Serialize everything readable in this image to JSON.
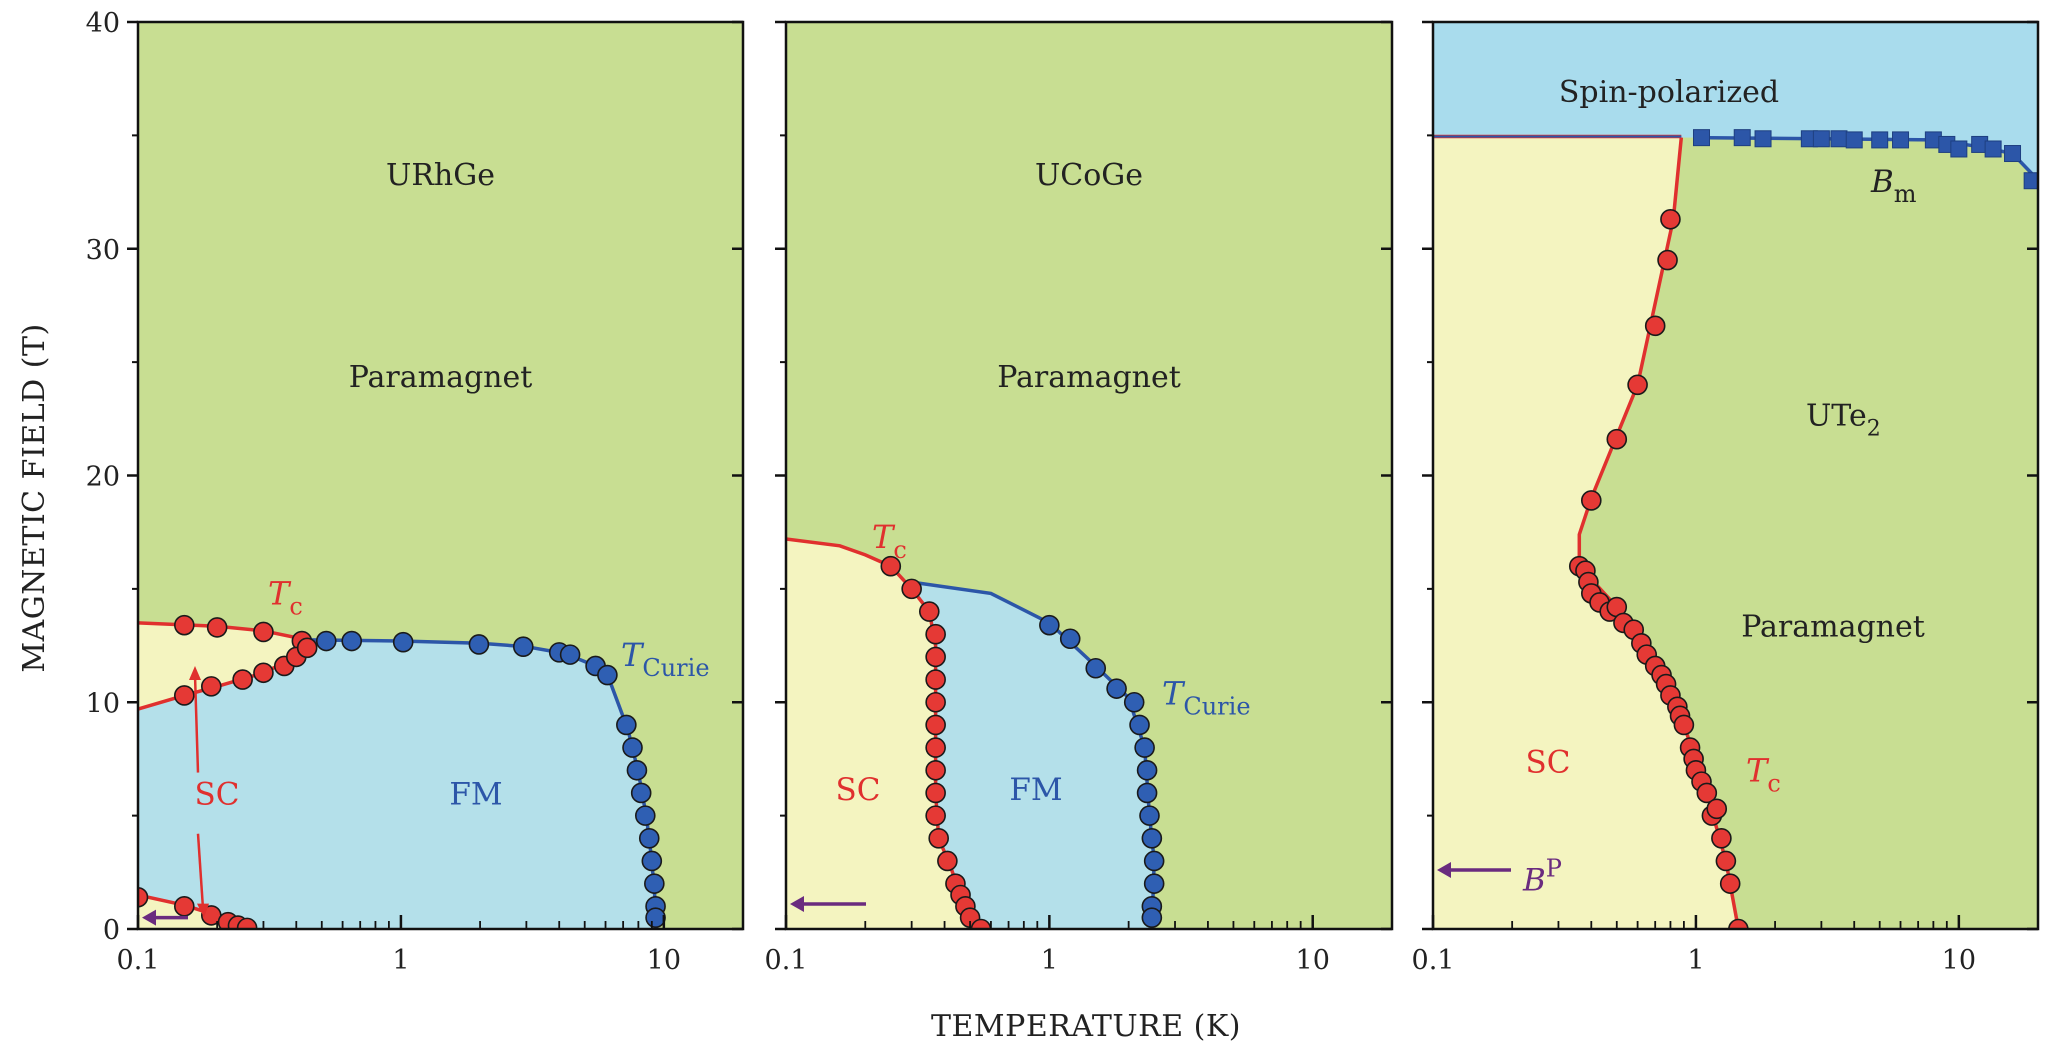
{
  "figure": {
    "ylabel": "MAGNETIC FIELD (T)",
    "xlabel": "TEMPERATURE (K)",
    "y_ticks": [
      "0",
      "10",
      "20",
      "30",
      "40"
    ],
    "x_ticks": [
      "0.1",
      "1",
      "10"
    ],
    "colors": {
      "paramagnet": "#c8de92",
      "ferromagnet": "#b4e0ea",
      "superconductor": "#f4f4c0",
      "spin_polarized": "#a9dced",
      "tc_curve": "#e0302e",
      "curie_curve": "#2c56a8",
      "arrow": "#6a2b7f"
    }
  },
  "panels": [
    {
      "material": "URhGe",
      "labels": {
        "paramagnet": "Paramagnet",
        "sc": "SC",
        "fm": "FM",
        "tc": "T",
        "tc_sub": "c",
        "curie": "T",
        "curie_sub": "Curie"
      }
    },
    {
      "material": "UCoGe",
      "labels": {
        "paramagnet": "Paramagnet",
        "sc": "SC",
        "fm": "FM",
        "tc": "T",
        "tc_sub": "c",
        "curie": "T",
        "curie_sub": "Curie"
      }
    },
    {
      "material": "UTe",
      "material_sub": "2",
      "labels": {
        "paramagnet": "Paramagnet",
        "sc": "SC",
        "spin": "Spin-polarized",
        "tc": "T",
        "tc_sub": "c",
        "bm": "B",
        "bm_sub": "m",
        "bp": "B",
        "bp_sup": "P"
      }
    }
  ],
  "chart_data": [
    {
      "type": "scatter",
      "title": "URhGe",
      "xlabel": "TEMPERATURE (K)",
      "ylabel": "MAGNETIC FIELD (T)",
      "x_scale": "log",
      "xlim": [
        0.1,
        20
      ],
      "ylim": [
        0,
        40
      ],
      "regions": [
        "Paramagnet",
        "SC",
        "FM"
      ],
      "series": [
        {
          "name": "T_c",
          "color": "#e0302e",
          "points": [
            [
              0.15,
              13.4
            ],
            [
              0.2,
              13.3
            ],
            [
              0.3,
              13.1
            ],
            [
              0.42,
              12.7
            ],
            [
              0.1,
              1.4
            ],
            [
              0.15,
              1.0
            ],
            [
              0.19,
              0.6
            ],
            [
              0.22,
              0.3
            ],
            [
              0.24,
              0.15
            ],
            [
              0.26,
              0.05
            ],
            [
              0.15,
              10.3
            ],
            [
              0.19,
              10.7
            ],
            [
              0.25,
              11.0
            ],
            [
              0.3,
              11.3
            ],
            [
              0.36,
              11.6
            ],
            [
              0.4,
              12.0
            ],
            [
              0.44,
              12.4
            ]
          ]
        },
        {
          "name": "T_Curie",
          "color": "#2c56a8",
          "points": [
            [
              0.52,
              12.7
            ],
            [
              0.65,
              12.7
            ],
            [
              1.02,
              12.65
            ],
            [
              1.98,
              12.55
            ],
            [
              2.92,
              12.45
            ],
            [
              4.0,
              12.2
            ],
            [
              4.4,
              12.1
            ],
            [
              5.5,
              11.6
            ],
            [
              6.1,
              11.2
            ],
            [
              7.2,
              9.0
            ],
            [
              7.6,
              8.0
            ],
            [
              7.9,
              7.0
            ],
            [
              8.2,
              6.0
            ],
            [
              8.5,
              5.0
            ],
            [
              8.8,
              4.0
            ],
            [
              9.0,
              3.0
            ],
            [
              9.2,
              2.0
            ],
            [
              9.3,
              1.0
            ],
            [
              9.3,
              0.5
            ]
          ]
        }
      ],
      "curves": {
        "tc_upper": [
          [
            0.1,
            13.5
          ],
          [
            0.2,
            13.35
          ],
          [
            0.3,
            13.15
          ],
          [
            0.42,
            12.8
          ]
        ],
        "tc_reentrant": [
          [
            0.1,
            9.7
          ],
          [
            0.15,
            10.3
          ],
          [
            0.2,
            10.7
          ],
          [
            0.3,
            11.3
          ],
          [
            0.4,
            12.0
          ],
          [
            0.46,
            12.6
          ],
          [
            0.52,
            12.75
          ]
        ],
        "tc_low": [
          [
            0.1,
            1.5
          ],
          [
            0.15,
            1.05
          ],
          [
            0.2,
            0.6
          ],
          [
            0.25,
            0.2
          ],
          [
            0.27,
            0.0
          ]
        ],
        "curie": [
          [
            0.45,
            12.75
          ],
          [
            1.0,
            12.7
          ],
          [
            2.0,
            12.6
          ],
          [
            3.0,
            12.45
          ],
          [
            4.2,
            12.15
          ],
          [
            5.5,
            11.6
          ],
          [
            6.2,
            11.0
          ],
          [
            7.3,
            8.8
          ],
          [
            8.0,
            6.9
          ],
          [
            8.6,
            4.9
          ],
          [
            9.0,
            3.0
          ],
          [
            9.3,
            1.0
          ],
          [
            9.35,
            0.0
          ]
        ]
      },
      "bp_arrow_y": 0.5
    },
    {
      "type": "scatter",
      "title": "UCoGe",
      "xlabel": "TEMPERATURE (K)",
      "ylabel": "MAGNETIC FIELD (T)",
      "x_scale": "log",
      "xlim": [
        0.1,
        20
      ],
      "ylim": [
        0,
        40
      ],
      "regions": [
        "Paramagnet",
        "SC",
        "FM"
      ],
      "series": [
        {
          "name": "T_c",
          "color": "#e0302e",
          "points": [
            [
              0.25,
              16.0
            ],
            [
              0.3,
              15.0
            ],
            [
              0.35,
              14.0
            ],
            [
              0.37,
              13.0
            ],
            [
              0.37,
              12.0
            ],
            [
              0.37,
              11.0
            ],
            [
              0.37,
              10.0
            ],
            [
              0.37,
              9.0
            ],
            [
              0.37,
              8.0
            ],
            [
              0.37,
              7.0
            ],
            [
              0.37,
              6.0
            ],
            [
              0.37,
              5.0
            ],
            [
              0.38,
              4.0
            ],
            [
              0.41,
              3.0
            ],
            [
              0.44,
              2.0
            ],
            [
              0.46,
              1.5
            ],
            [
              0.48,
              1.0
            ],
            [
              0.5,
              0.5
            ],
            [
              0.55,
              0.0
            ]
          ]
        },
        {
          "name": "T_Curie",
          "color": "#2c56a8",
          "points": [
            [
              1.0,
              13.4
            ],
            [
              1.2,
              12.8
            ],
            [
              1.5,
              11.5
            ],
            [
              1.8,
              10.6
            ],
            [
              2.1,
              10.0
            ],
            [
              2.2,
              9.0
            ],
            [
              2.3,
              8.0
            ],
            [
              2.35,
              7.0
            ],
            [
              2.35,
              6.0
            ],
            [
              2.4,
              5.0
            ],
            [
              2.45,
              4.0
            ],
            [
              2.5,
              3.0
            ],
            [
              2.5,
              2.0
            ],
            [
              2.45,
              1.0
            ],
            [
              2.45,
              0.5
            ]
          ]
        }
      ],
      "curves": {
        "tc_outer": [
          [
            0.1,
            17.2
          ],
          [
            0.16,
            16.9
          ],
          [
            0.2,
            16.5
          ],
          [
            0.25,
            16.0
          ],
          [
            0.3,
            15.0
          ],
          [
            0.35,
            14.0
          ],
          [
            0.37,
            12.5
          ],
          [
            0.37,
            6.0
          ],
          [
            0.38,
            4.0
          ],
          [
            0.42,
            2.8
          ],
          [
            0.47,
            1.2
          ],
          [
            0.52,
            0.4
          ],
          [
            0.57,
            0.0
          ]
        ],
        "curie": [
          [
            0.3,
            15.3
          ],
          [
            0.6,
            14.8
          ],
          [
            1.0,
            13.5
          ],
          [
            1.5,
            11.6
          ],
          [
            2.0,
            10.2
          ],
          [
            2.3,
            8.0
          ],
          [
            2.4,
            5.0
          ],
          [
            2.5,
            3.0
          ],
          [
            2.45,
            0.0
          ]
        ]
      },
      "bp_arrow_y": 1.1
    },
    {
      "type": "scatter",
      "title": "UTe2",
      "xlabel": "TEMPERATURE (K)",
      "ylabel": "MAGNETIC FIELD (T)",
      "x_scale": "log",
      "xlim": [
        0.1,
        20
      ],
      "ylim": [
        0,
        40
      ],
      "regions": [
        "Spin-polarized",
        "Paramagnet",
        "SC"
      ],
      "series": [
        {
          "name": "T_c",
          "color": "#e0302e",
          "points": [
            [
              0.8,
              31.3
            ],
            [
              0.78,
              29.5
            ],
            [
              0.7,
              26.6
            ],
            [
              0.6,
              24.0
            ],
            [
              0.5,
              21.6
            ],
            [
              0.4,
              18.9
            ],
            [
              0.36,
              16.0
            ],
            [
              0.38,
              15.8
            ],
            [
              0.39,
              15.3
            ],
            [
              0.4,
              14.8
            ],
            [
              0.43,
              14.4
            ],
            [
              0.47,
              14.0
            ],
            [
              0.5,
              14.2
            ],
            [
              0.53,
              13.5
            ],
            [
              0.58,
              13.2
            ],
            [
              0.62,
              12.6
            ],
            [
              0.65,
              12.1
            ],
            [
              0.7,
              11.6
            ],
            [
              0.74,
              11.2
            ],
            [
              0.77,
              10.8
            ],
            [
              0.8,
              10.3
            ],
            [
              0.85,
              9.8
            ],
            [
              0.87,
              9.4
            ],
            [
              0.9,
              9.0
            ],
            [
              0.95,
              8.0
            ],
            [
              0.98,
              7.5
            ],
            [
              1.0,
              7.0
            ],
            [
              1.05,
              6.5
            ],
            [
              1.1,
              6.0
            ],
            [
              1.15,
              5.0
            ],
            [
              1.2,
              5.3
            ],
            [
              1.25,
              4.0
            ],
            [
              1.3,
              3.0
            ],
            [
              1.35,
              2.0
            ],
            [
              1.45,
              0.0
            ]
          ]
        },
        {
          "name": "B_m",
          "color": "#2c56a8",
          "points": [
            [
              1.05,
              34.9
            ],
            [
              1.5,
              34.9
            ],
            [
              1.8,
              34.85
            ],
            [
              2.7,
              34.85
            ],
            [
              3.0,
              34.85
            ],
            [
              3.5,
              34.85
            ],
            [
              4.0,
              34.8
            ],
            [
              5.0,
              34.8
            ],
            [
              6.0,
              34.8
            ],
            [
              8.0,
              34.8
            ],
            [
              9.0,
              34.6
            ],
            [
              10.0,
              34.4
            ],
            [
              12.0,
              34.6
            ],
            [
              13.5,
              34.4
            ],
            [
              16.0,
              34.2
            ],
            [
              19.0,
              33.0
            ]
          ]
        }
      ],
      "curves": {
        "tc": [
          [
            0.88,
            34.9
          ],
          [
            0.82,
            31.3
          ],
          [
            0.6,
            24.0
          ],
          [
            0.4,
            19.0
          ],
          [
            0.36,
            17.4
          ],
          [
            0.36,
            16.0
          ],
          [
            0.5,
            14.2
          ],
          [
            0.7,
            11.7
          ],
          [
            0.9,
            9.0
          ],
          [
            1.1,
            6.0
          ],
          [
            1.3,
            3.0
          ],
          [
            1.45,
            0.0
          ]
        ],
        "bm": [
          [
            0.1,
            34.95
          ],
          [
            1.0,
            34.9
          ],
          [
            3.0,
            34.85
          ],
          [
            8.0,
            34.8
          ],
          [
            12.0,
            34.5
          ],
          [
            16.0,
            34.2
          ],
          [
            19.0,
            33.3
          ],
          [
            20.0,
            32.8
          ]
        ]
      },
      "bp_arrow_y": 2.6
    }
  ]
}
